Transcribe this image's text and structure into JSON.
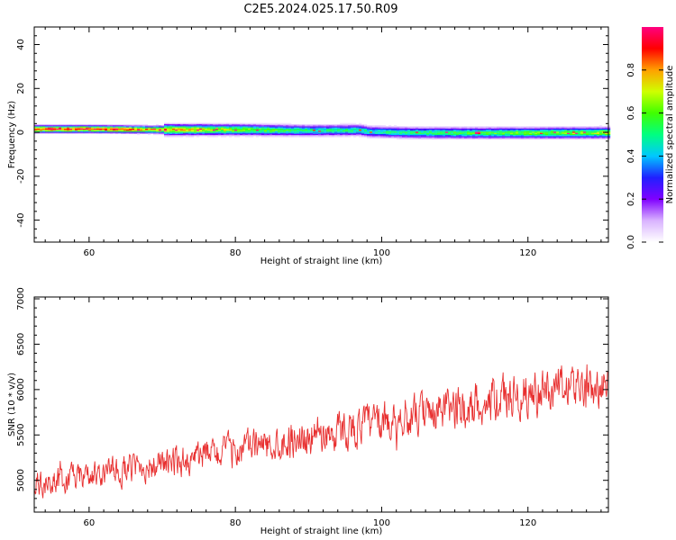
{
  "figure_title": "C2E5.2024.025.17.50.R09",
  "chart_data": [
    {
      "type": "heatmap",
      "title": "C2E5.2024.025.17.50.R09",
      "xlabel": "Height of straight line (km)",
      "ylabel": "Frequency (Hz)",
      "xlim": [
        52.5,
        131
      ],
      "ylim": [
        -50,
        48
      ],
      "xticks": [
        60,
        80,
        100,
        120
      ],
      "yticks": [
        40,
        20,
        0,
        -20,
        -40
      ],
      "colorbar": {
        "label": "Normalized spectral amplitude",
        "range": [
          0,
          1
        ],
        "ticks": [
          "0.0",
          "0.2",
          "0.4",
          "0.6",
          "0.8"
        ],
        "colormap": [
          "#ffffff",
          "#d9b3ff",
          "#8000ff",
          "#2020ff",
          "#00c8ff",
          "#00ff80",
          "#40ff00",
          "#d0ff00",
          "#ffa000",
          "#ff0000",
          "#ff0080"
        ]
      },
      "ridge": {
        "description_x_km": [
          53,
          60,
          70,
          80,
          90,
          97,
          98,
          104,
          110,
          120,
          130
        ],
        "center_hz": [
          1.5,
          1.5,
          1.2,
          1.2,
          0.8,
          1.0,
          0.3,
          -0.2,
          -0.3,
          -0.3,
          -0.2
        ],
        "peak_amplitude": [
          0.9,
          0.9,
          0.8,
          0.65,
          0.5,
          0.5,
          0.45,
          0.5,
          0.55,
          0.6,
          0.65
        ]
      }
    },
    {
      "type": "line",
      "xlabel": "Height of straight line (km)",
      "ylabel": "SNR (10 * v/v)",
      "xlim": [
        52.5,
        131
      ],
      "ylim": [
        4650,
        7020
      ],
      "xticks": [
        60,
        80,
        100,
        120
      ],
      "yticks": [
        5000,
        5500,
        6000,
        6500,
        7000
      ],
      "series": [
        {
          "color": "#e83030",
          "trend_x": [
            52.5,
            60,
            70,
            80,
            90,
            100,
            110,
            120,
            131
          ],
          "trend_y": [
            4950,
            5050,
            5180,
            5330,
            5480,
            5640,
            5790,
            5960,
            6100
          ],
          "noise_amplitude": [
            180,
            180,
            200,
            220,
            240,
            260,
            280,
            300,
            300
          ]
        }
      ]
    }
  ]
}
